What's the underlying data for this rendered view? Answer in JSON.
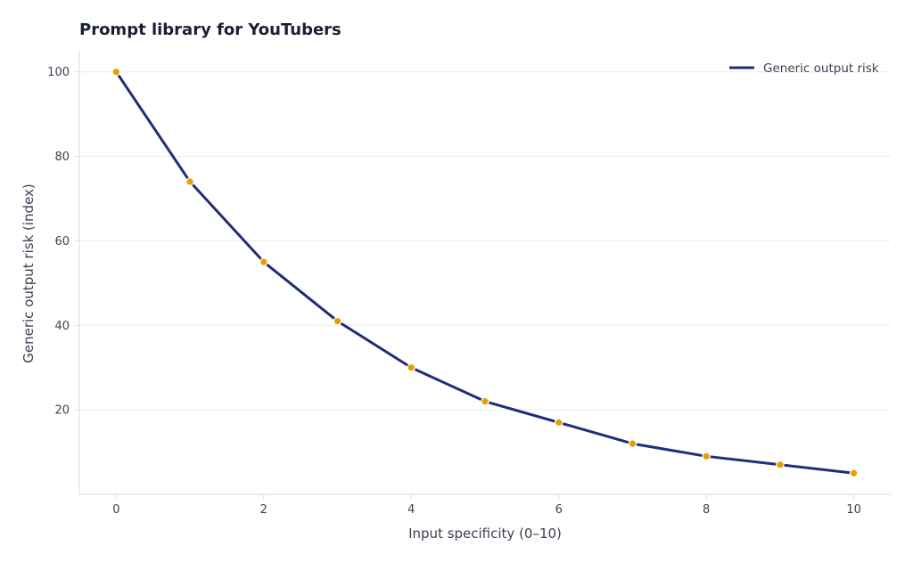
{
  "chart_data": {
    "type": "line",
    "title": "Prompt library for YouTubers",
    "xlabel": "Input specificity (0–10)",
    "ylabel": "Generic output risk (index)",
    "x": [
      0,
      1,
      2,
      3,
      4,
      5,
      6,
      7,
      8,
      9,
      10
    ],
    "series": [
      {
        "name": "Generic output risk",
        "values": [
          100,
          74,
          55,
          41,
          30,
          22,
          17,
          12,
          9,
          7,
          5
        ],
        "line_color": "#1f2d7a",
        "marker_color": "#e69f00"
      }
    ],
    "xticks": [
      0,
      2,
      4,
      6,
      8,
      10
    ],
    "yticks": [
      20,
      40,
      60,
      80,
      100
    ],
    "xlim": [
      -0.5,
      10.5
    ],
    "ylim": [
      0,
      105
    ],
    "grid": "horizontal",
    "legend_position": "top-right"
  }
}
